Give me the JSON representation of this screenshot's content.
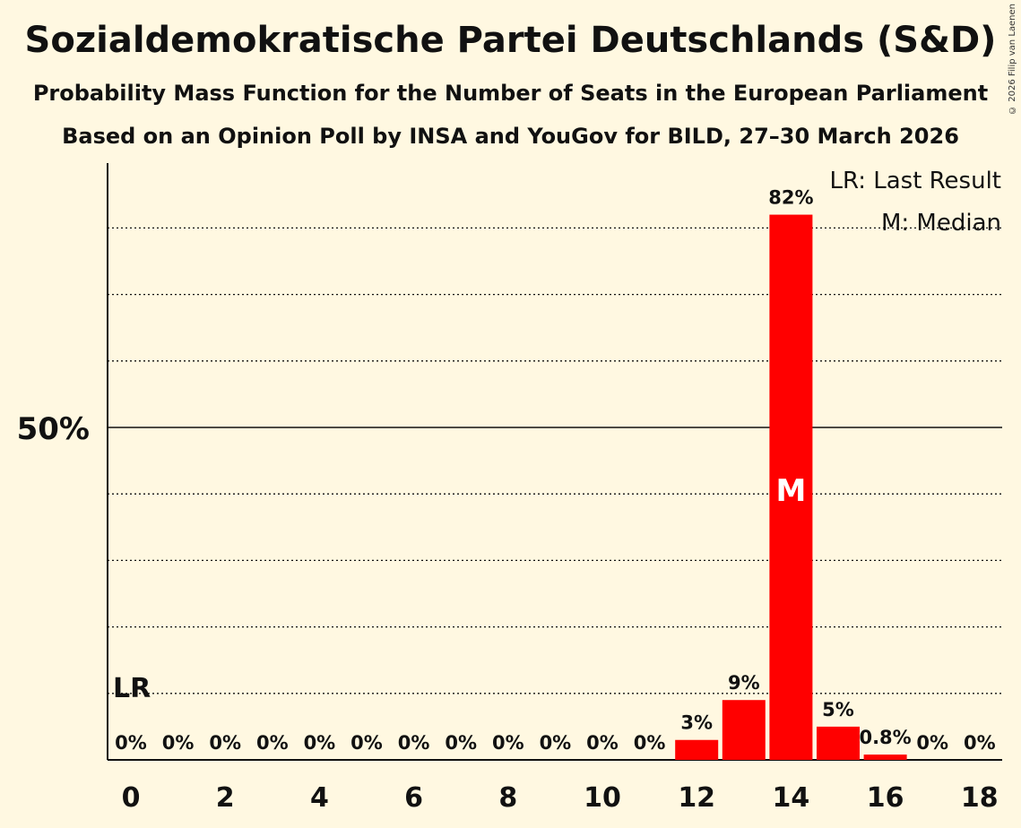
{
  "title": "Sozialdemokratische Partei Deutschlands (S&D)",
  "subtitle": "Probability Mass Function for the Number of Seats in the European Parliament",
  "subtitle2": "Based on an Opinion Poll by INSA and YouGov for BILD, 27–30 March 2026",
  "copyright": "© 2026 Filip van Laenen",
  "legend": {
    "last_result": "LR: Last Result",
    "median": "M: Median"
  },
  "colors": {
    "bar": "#ff0000",
    "background": "#fff8e1",
    "text": "#111111"
  },
  "chart_data": {
    "type": "bar",
    "categories": [
      "0",
      "1",
      "2",
      "3",
      "4",
      "5",
      "6",
      "7",
      "8",
      "9",
      "10",
      "11",
      "12",
      "13",
      "14",
      "15",
      "16",
      "17",
      "18"
    ],
    "values": [
      0,
      0,
      0,
      0,
      0,
      0,
      0,
      0,
      0,
      0,
      0,
      0,
      3,
      9,
      82,
      5,
      0.8,
      0,
      0
    ],
    "labels": [
      "0%",
      "0%",
      "0%",
      "0%",
      "0%",
      "0%",
      "0%",
      "0%",
      "0%",
      "0%",
      "0%",
      "0%",
      "3%",
      "9%",
      "82%",
      "5%",
      "0.8%",
      "0%",
      "0%"
    ],
    "x_tick_labels": [
      "0",
      "2",
      "4",
      "6",
      "8",
      "10",
      "12",
      "14",
      "16",
      "18"
    ],
    "x_ticks": [
      0,
      2,
      4,
      6,
      8,
      10,
      12,
      14,
      16,
      18
    ],
    "y_tick_label": "50%",
    "y_tick_value": 50,
    "ylim": [
      0,
      90
    ],
    "gridlines": [
      10,
      20,
      30,
      40,
      60,
      70,
      80
    ],
    "median_seat": 14,
    "median_marker": "M",
    "last_result_seat": 0,
    "last_result_marker": "LR",
    "last_result_level": 10
  }
}
